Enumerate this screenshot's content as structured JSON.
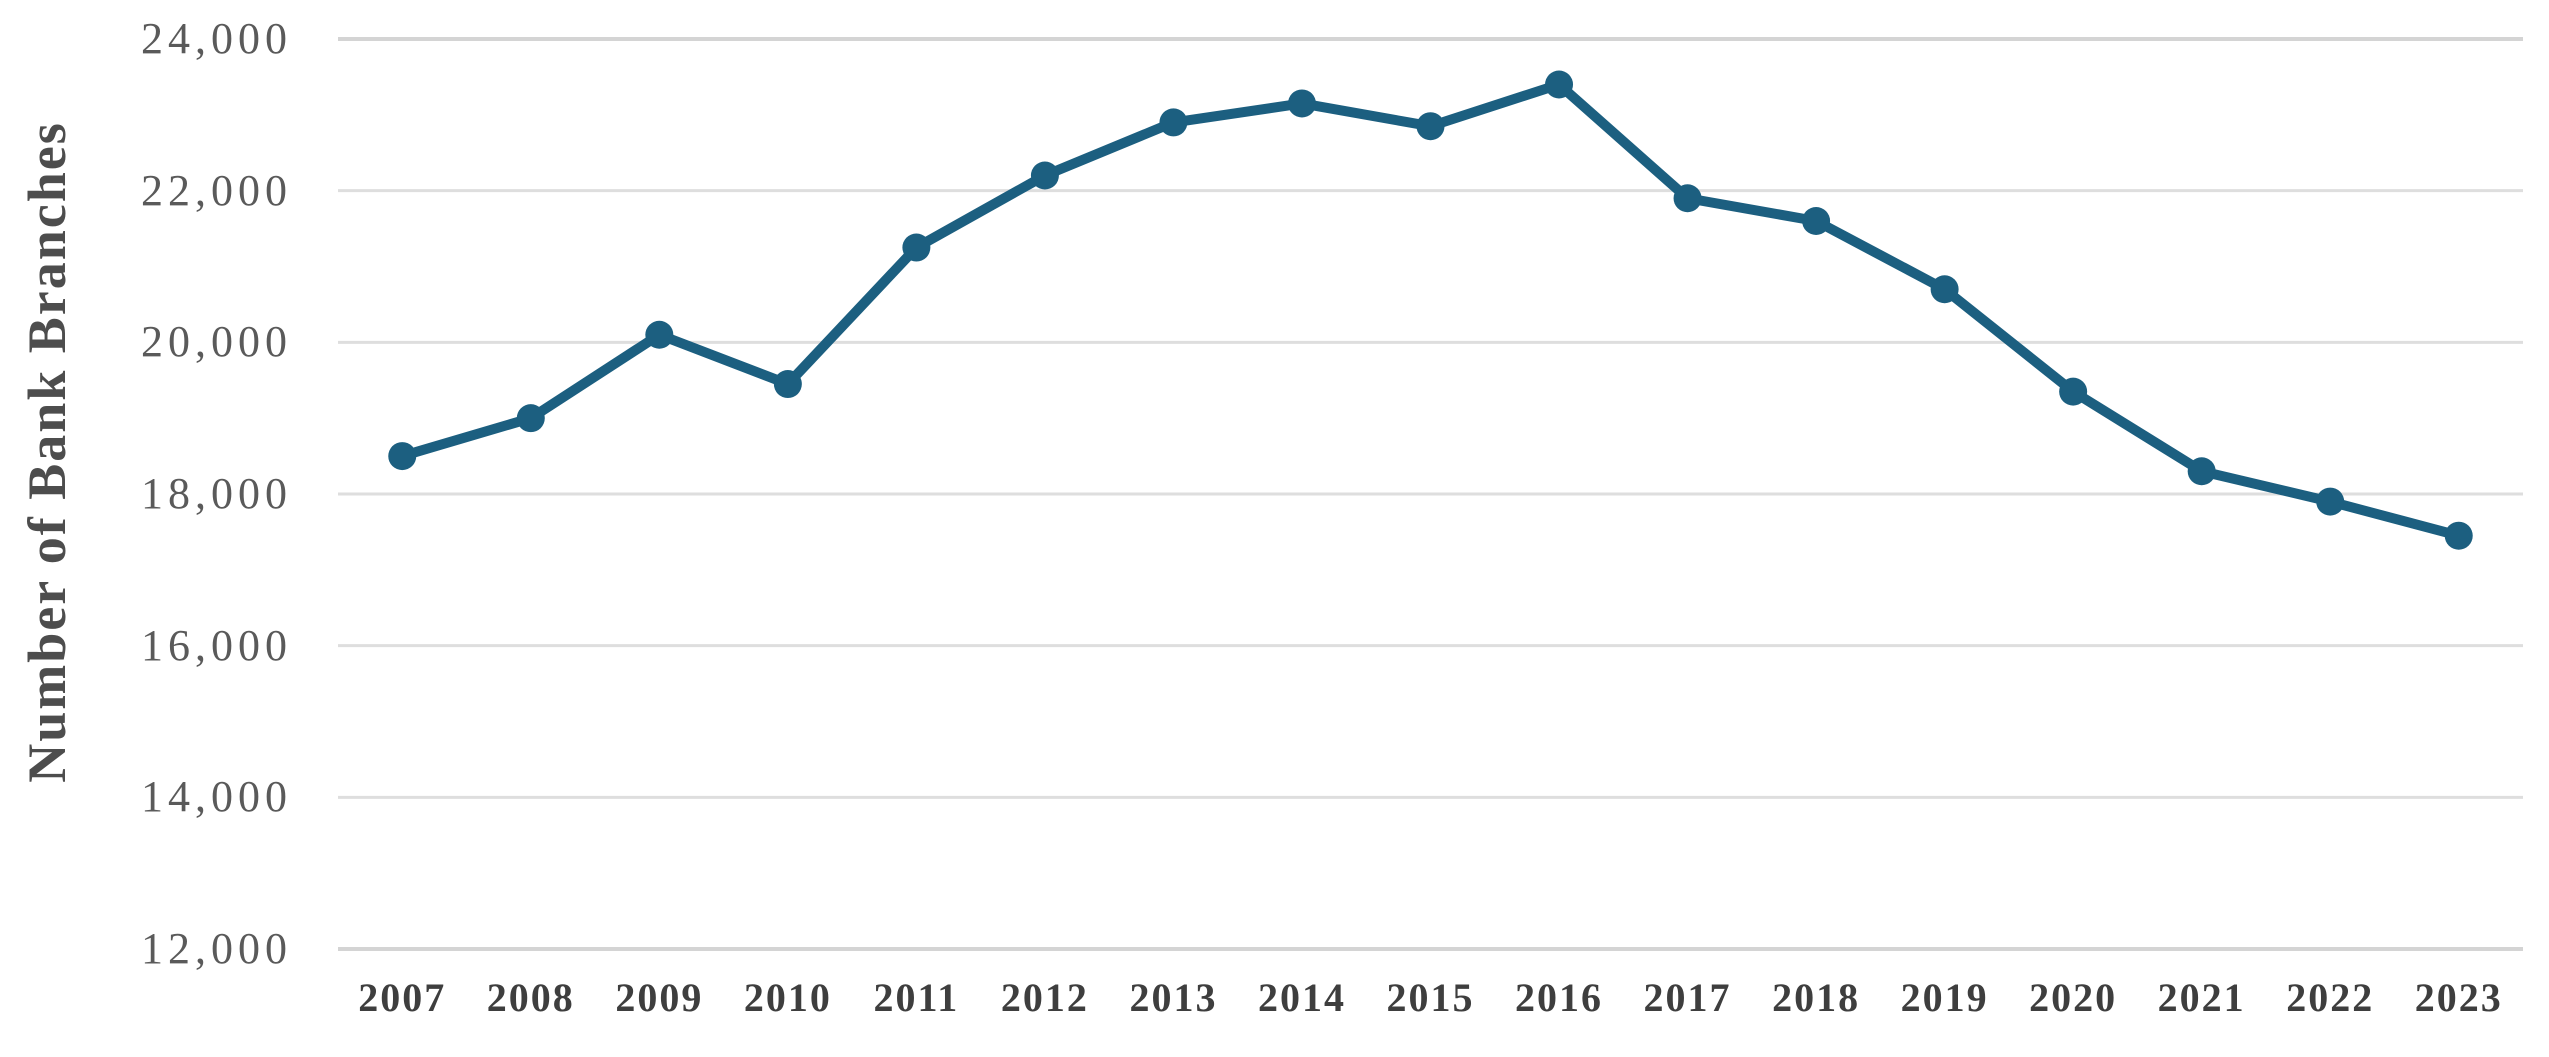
{
  "chart_data": {
    "type": "line",
    "title": "",
    "xlabel": "",
    "ylabel": "Number of Bank Branches",
    "categories": [
      "2007",
      "2008",
      "2009",
      "2010",
      "2011",
      "2012",
      "2013",
      "2014",
      "2015",
      "2016",
      "2017",
      "2018",
      "2019",
      "2020",
      "2021",
      "2022",
      "2023"
    ],
    "series": [
      {
        "name": "Number of Bank Branches",
        "values": [
          18500,
          19000,
          20100,
          19450,
          21250,
          22200,
          22900,
          23150,
          22850,
          23400,
          21900,
          21600,
          20700,
          19350,
          18300,
          17900,
          17450
        ]
      }
    ],
    "ylim": [
      12000,
      24000
    ],
    "ytick_interval": 2000,
    "yticks": [
      24000,
      22000,
      20000,
      18000,
      16000,
      14000,
      12000
    ],
    "ytick_labels": [
      "24,000",
      "22,000",
      "20,000",
      "18,000",
      "16,000",
      "14,000",
      "12,000"
    ],
    "grid": true,
    "legend": false,
    "marker": "circle"
  },
  "colors": {
    "line": "#1c5f80",
    "marker": "#1c5f80",
    "gridline": "#dedede",
    "gridline_edge": "#d4d4d4",
    "y_tick_text": "#5a5a5a",
    "x_tick_text": "#3e3e3e",
    "axis_title_text": "#4d4d4d",
    "background": "#ffffff"
  }
}
